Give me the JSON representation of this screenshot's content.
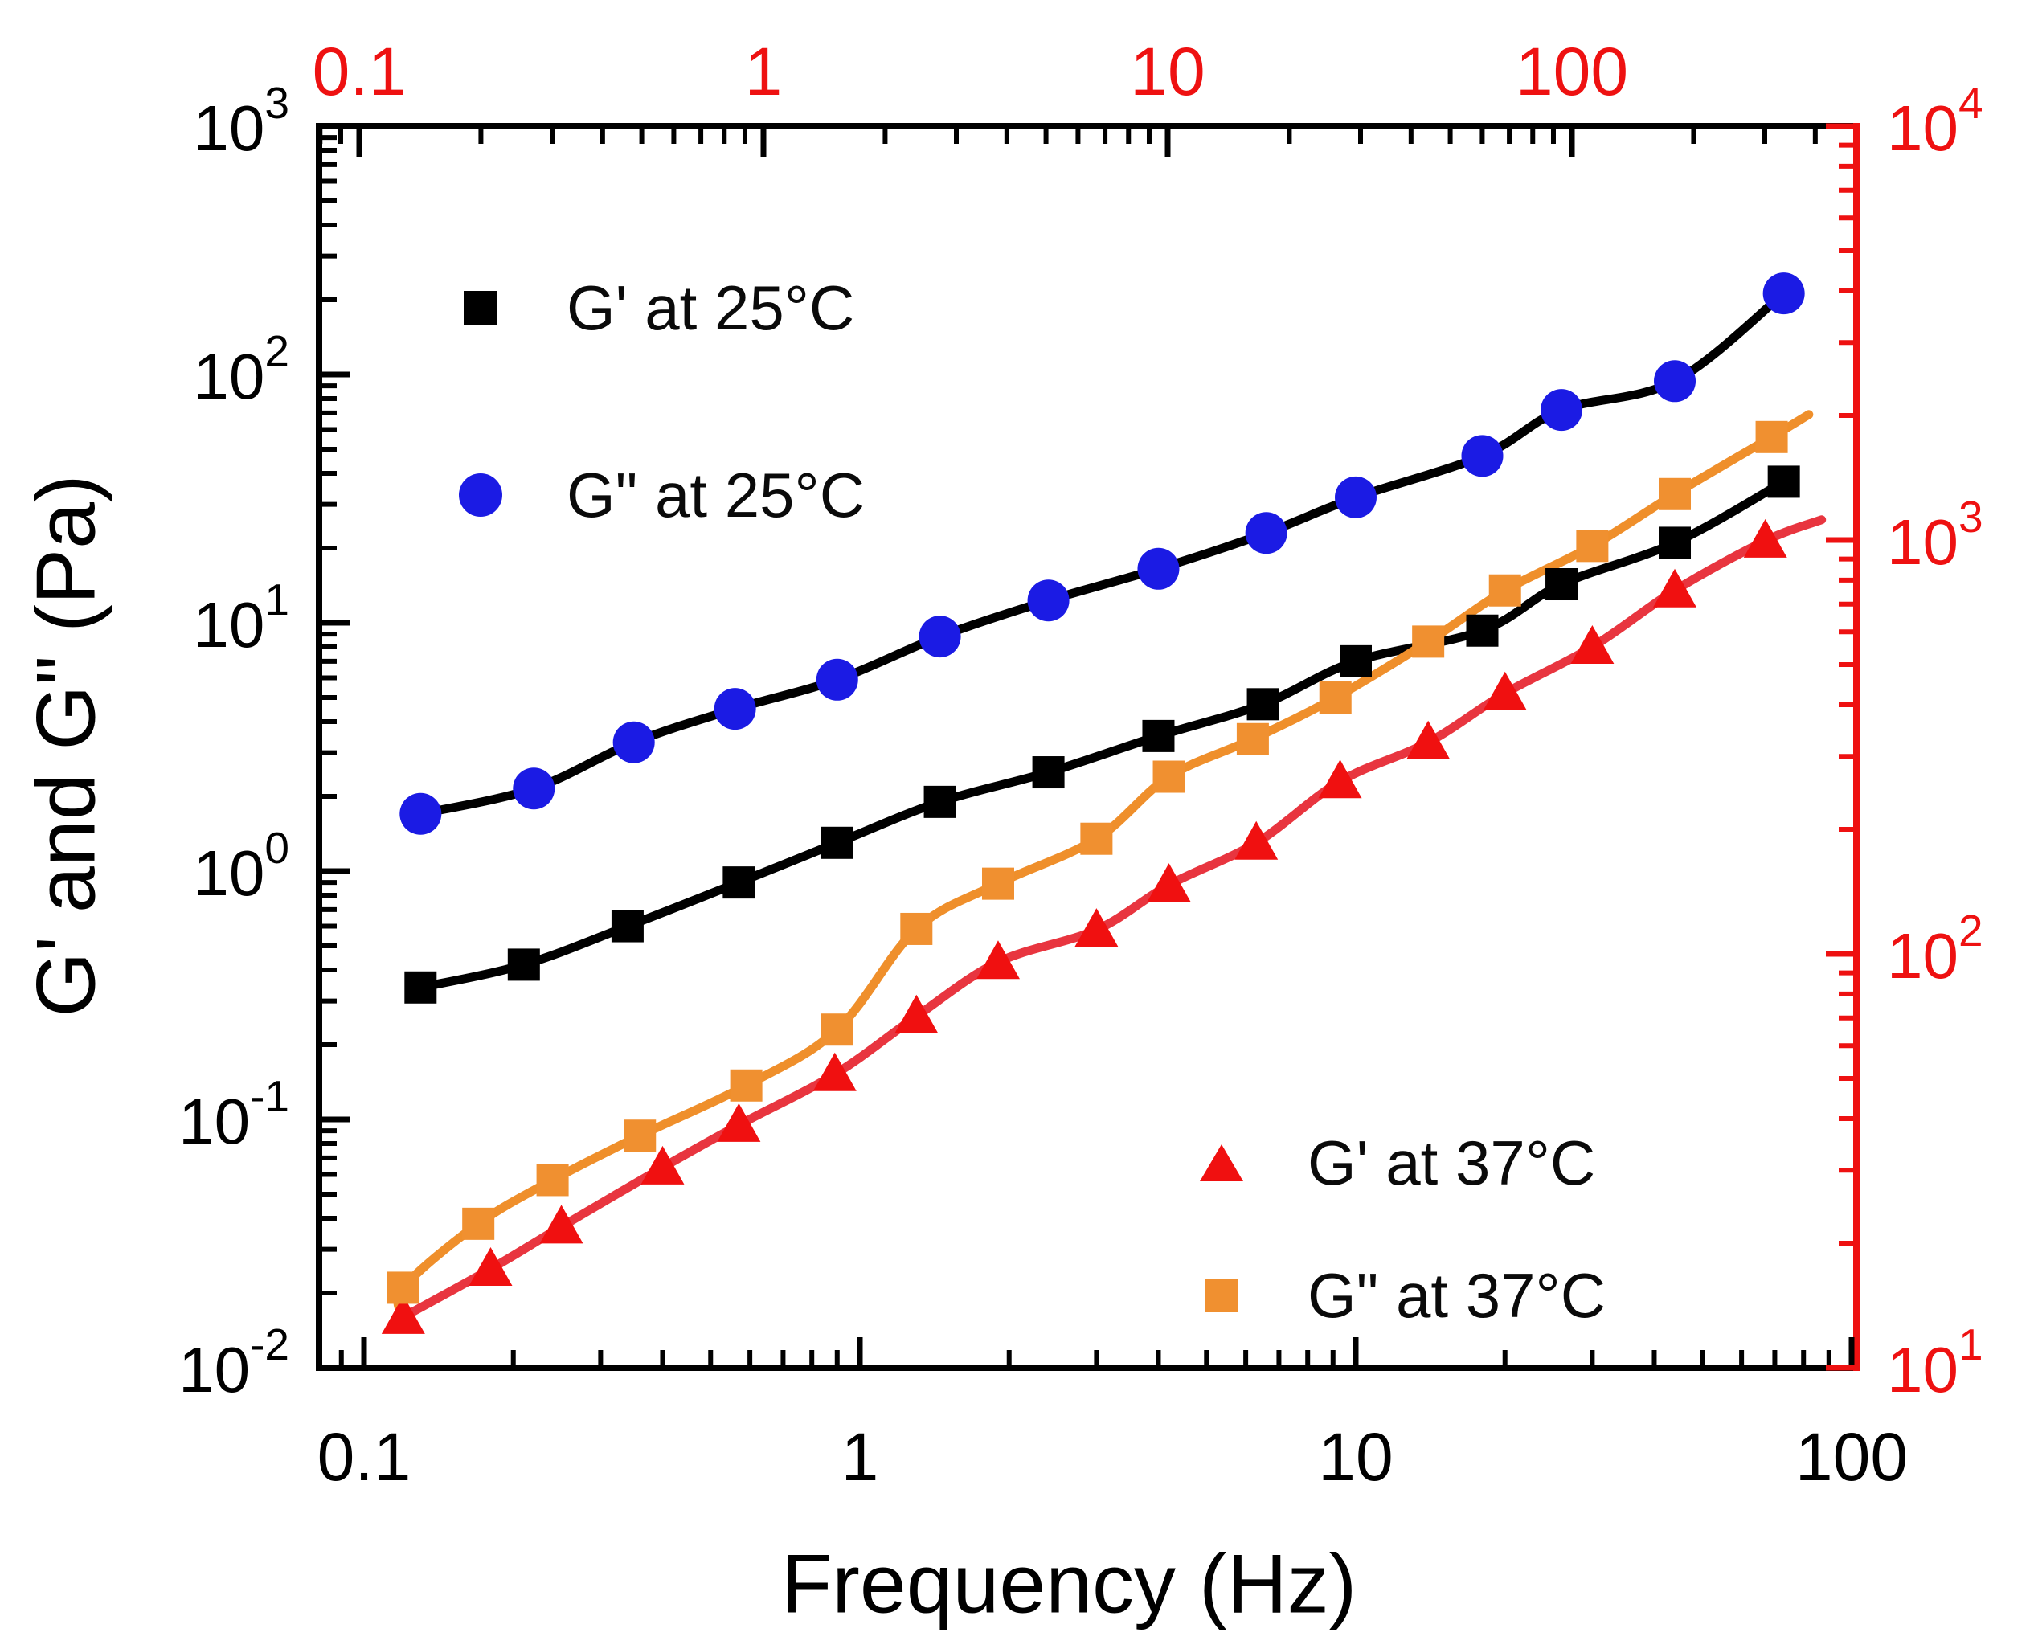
{
  "chart_data": {
    "type": "scatter",
    "title": "",
    "xlabel": "Frequency (Hz)",
    "ylabel_left": "G' and G\" (Pa)",
    "grid": false,
    "axes": {
      "x_bottom": {
        "scale": "log",
        "color": "#000000",
        "tick_labels": [
          "0.1",
          "1",
          "10",
          "100"
        ],
        "tick_values": [
          0.1,
          1,
          10,
          100
        ],
        "range": [
          0.081,
          100
        ]
      },
      "x_top": {
        "scale": "log",
        "color": "#ee1111",
        "tick_labels": [
          "0.1",
          "1",
          "10",
          "100"
        ],
        "tick_values": [
          0.1,
          1,
          10,
          100
        ],
        "range": [
          0.08,
          500
        ]
      },
      "y_left": {
        "scale": "log",
        "color": "#000000",
        "tick_base": "10",
        "tick_exponents": [
          3,
          2,
          1,
          0,
          -1,
          -2
        ],
        "range": [
          0.01,
          1000
        ]
      },
      "y_right": {
        "scale": "log",
        "color": "#ee1111",
        "tick_base": "10",
        "tick_exponents": [
          4,
          3,
          2,
          1
        ],
        "range": [
          10,
          10000
        ]
      }
    },
    "series": [
      {
        "id": "gprime25",
        "name": "G' at 25°C",
        "marker": "square",
        "marker_color": "#000000",
        "line_color": "#000000",
        "points": [
          [
            0.13,
            0.34
          ],
          [
            0.21,
            0.42
          ],
          [
            0.34,
            0.6
          ],
          [
            0.57,
            0.9
          ],
          [
            0.9,
            1.3
          ],
          [
            1.45,
            1.9
          ],
          [
            2.4,
            2.5
          ],
          [
            4.0,
            3.5
          ],
          [
            6.5,
            4.7
          ],
          [
            10,
            7.0
          ],
          [
            18,
            9.3
          ],
          [
            26,
            14.3
          ],
          [
            44,
            21
          ],
          [
            73,
            37
          ]
        ]
      },
      {
        "id": "gdouble25",
        "name": "G\" at 25°C",
        "marker": "circle",
        "marker_color": "#1b1be4",
        "line_color": "#000000",
        "points": [
          [
            0.13,
            1.7
          ],
          [
            0.22,
            2.15
          ],
          [
            0.35,
            3.3
          ],
          [
            0.56,
            4.5
          ],
          [
            0.9,
            5.9
          ],
          [
            1.45,
            8.8
          ],
          [
            2.4,
            12.3
          ],
          [
            4.0,
            16.5
          ],
          [
            6.6,
            23
          ],
          [
            10,
            32
          ],
          [
            18,
            47
          ],
          [
            26,
            72
          ],
          [
            44,
            94
          ],
          [
            73,
            212
          ]
        ]
      },
      {
        "id": "gprime37",
        "name": "G' at 37°C",
        "marker": "triangle",
        "marker_color": "#f01010",
        "line_color": "#e8353f",
        "points": [
          [
            0.12,
            0.016
          ],
          [
            0.18,
            0.025
          ],
          [
            0.25,
            0.037
          ],
          [
            0.4,
            0.064
          ],
          [
            0.57,
            0.095
          ],
          [
            0.89,
            0.152
          ],
          [
            1.3,
            0.26
          ],
          [
            1.9,
            0.43
          ],
          [
            3.0,
            0.58
          ],
          [
            4.2,
            0.88
          ],
          [
            6.3,
            1.3
          ],
          [
            9.3,
            2.3
          ],
          [
            14,
            3.3
          ],
          [
            20,
            5.2
          ],
          [
            30,
            8.0
          ],
          [
            44,
            13.5
          ],
          [
            67,
            21.4
          ]
        ],
        "line_end": [
          87,
          26
        ]
      },
      {
        "id": "gdouble37",
        "name": "G\" at 37°C",
        "marker": "square",
        "marker_color": "#f09030",
        "line_color": "#ef8f2b",
        "points": [
          [
            0.12,
            0.021
          ],
          [
            0.17,
            0.038
          ],
          [
            0.24,
            0.057
          ],
          [
            0.36,
            0.086
          ],
          [
            0.59,
            0.137
          ],
          [
            0.9,
            0.23
          ],
          [
            1.3,
            0.585
          ],
          [
            1.9,
            0.89
          ],
          [
            3.0,
            1.35
          ],
          [
            4.2,
            2.4
          ],
          [
            6.2,
            3.4
          ],
          [
            9.1,
            5.0
          ],
          [
            14,
            8.4
          ],
          [
            20,
            13.5
          ],
          [
            30,
            20.4
          ],
          [
            44,
            33
          ],
          [
            69,
            56
          ]
        ],
        "line_start": [
          0.12,
          0.0158
        ],
        "line_end": [
          82,
          69
        ]
      }
    ],
    "legend_top_left_series": [
      0,
      1
    ],
    "legend_bottom_right_series": [
      2,
      3
    ]
  }
}
